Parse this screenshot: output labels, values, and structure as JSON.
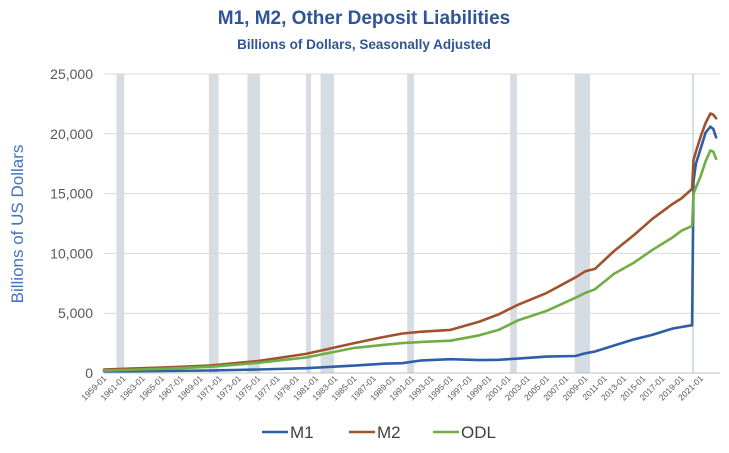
{
  "chart_data": {
    "type": "line",
    "title": "M1, M2, Other Deposit Liabilities",
    "subtitle": "Billions of Dollars, Seasonally Adjusted",
    "ylabel": "Billions of US Dollars",
    "xlabel": "",
    "ylim": [
      0,
      25000
    ],
    "yticks": [
      0,
      5000,
      10000,
      15000,
      20000,
      25000
    ],
    "ytick_labels": [
      "0",
      "5,000",
      "10,000",
      "15,000",
      "20,000",
      "25,000"
    ],
    "xlim": [
      1959.0,
      2023.0
    ],
    "xtick_labels": [
      "1959-01",
      "1961-01",
      "1963-01",
      "1965-01",
      "1967-01",
      "1969-01",
      "1971-01",
      "1973-01",
      "1975-01",
      "1977-01",
      "1979-01",
      "1981-01",
      "1983-01",
      "1985-01",
      "1987-01",
      "1989-01",
      "1991-01",
      "1993-01",
      "1995-01",
      "1997-01",
      "1999-01",
      "2001-01",
      "2003-01",
      "2005-01",
      "2007-01",
      "2009-01",
      "2011-01",
      "2013-01",
      "2015-01",
      "2017-01",
      "2019-01",
      "2021-01"
    ],
    "grid": "horizontal",
    "legend_position": "bottom",
    "colors": {
      "title": "#2e5597",
      "axis_label": "#4472c4",
      "recession": "#d6dce4"
    },
    "recessions": [
      [
        1960.3,
        1961.1
      ],
      [
        1969.9,
        1970.9
      ],
      [
        1973.9,
        1975.2
      ],
      [
        1980.0,
        1980.5
      ],
      [
        1981.5,
        1982.9
      ],
      [
        1990.5,
        1991.2
      ],
      [
        2001.2,
        2001.9
      ],
      [
        2007.9,
        2009.5
      ],
      [
        2020.1,
        2020.3
      ]
    ],
    "series": [
      {
        "name": "M1",
        "color": "#2e5ea8",
        "x": [
          1959,
          1965,
          1970,
          1975,
          1980,
          1985,
          1988,
          1990,
          1992,
          1995,
          1998,
          2000,
          2002,
          2005,
          2008,
          2009,
          2010,
          2012,
          2014,
          2016,
          2018,
          2019,
          2020.1,
          2020.25,
          2020.5,
          2021,
          2021.5,
          2022,
          2022.3,
          2022.6
        ],
        "y": [
          140,
          170,
          210,
          290,
          400,
          620,
          780,
          820,
          1050,
          1150,
          1080,
          1100,
          1200,
          1370,
          1420,
          1650,
          1800,
          2300,
          2800,
          3200,
          3700,
          3850,
          4000,
          16000,
          17500,
          18800,
          20100,
          20600,
          20400,
          19700
        ]
      },
      {
        "name": "M2",
        "color": "#a0522d",
        "x": [
          1959,
          1965,
          1970,
          1975,
          1980,
          1985,
          1988,
          1990,
          1992,
          1995,
          1998,
          2000,
          2002,
          2005,
          2008,
          2009,
          2010,
          2012,
          2014,
          2016,
          2018,
          2019,
          2020.1,
          2020.25,
          2020.5,
          2021,
          2021.5,
          2022,
          2022.3,
          2022.6
        ],
        "y": [
          290,
          460,
          630,
          1000,
          1600,
          2500,
          3000,
          3300,
          3450,
          3600,
          4300,
          4900,
          5700,
          6700,
          8000,
          8500,
          8700,
          10200,
          11500,
          12900,
          14100,
          14600,
          15400,
          17800,
          18500,
          19800,
          20900,
          21700,
          21600,
          21300
        ]
      },
      {
        "name": "ODL",
        "color": "#70ad47",
        "x": [
          1959,
          1965,
          1970,
          1975,
          1980,
          1985,
          1988,
          1990,
          1992,
          1995,
          1998,
          2000,
          2002,
          2005,
          2008,
          2009,
          2010,
          2012,
          2014,
          2016,
          2018,
          2019,
          2020.1,
          2020.25,
          2020.5,
          2021,
          2021.5,
          2022,
          2022.3,
          2022.6
        ],
        "y": [
          200,
          350,
          520,
          850,
          1300,
          2100,
          2350,
          2500,
          2600,
          2700,
          3150,
          3600,
          4400,
          5200,
          6300,
          6700,
          7000,
          8300,
          9200,
          10300,
          11300,
          11900,
          12300,
          15000,
          15500,
          16500,
          17700,
          18600,
          18500,
          17900
        ]
      }
    ]
  }
}
